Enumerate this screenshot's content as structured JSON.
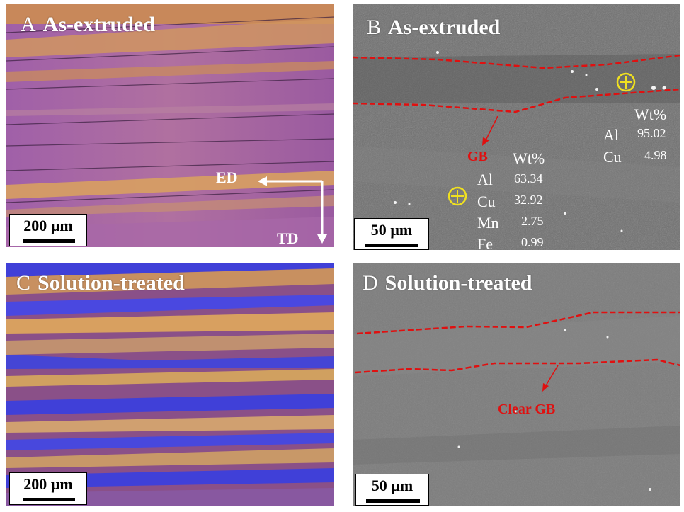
{
  "panels": {
    "a": {
      "letter": "A",
      "title": "As-extruded",
      "scale": "200 µm",
      "ed": "ED",
      "td": "TD"
    },
    "b": {
      "letter": "B",
      "title": "As-extruded",
      "scale": "50 µm",
      "gb": "GB",
      "comp1": {
        "header": "Wt%",
        "rows": [
          {
            "el": "Al",
            "val": "63.34"
          },
          {
            "el": "Cu",
            "val": "32.92"
          },
          {
            "el": "Mn",
            "val": "2.75"
          },
          {
            "el": "Fe",
            "val": "0.99"
          }
        ]
      },
      "comp2": {
        "header": "Wt%",
        "rows": [
          {
            "el": "Al",
            "val": "95.02"
          },
          {
            "el": "Cu",
            "val": "4.98"
          }
        ]
      }
    },
    "c": {
      "letter": "C",
      "title": "Solution-treated",
      "scale": "200 µm"
    },
    "d": {
      "letter": "D",
      "title": "Solution-treated",
      "scale": "50 µm",
      "gb": "Clear GB"
    }
  },
  "colors": {
    "gb_line": "#e01010",
    "marker": "#f0e020"
  }
}
